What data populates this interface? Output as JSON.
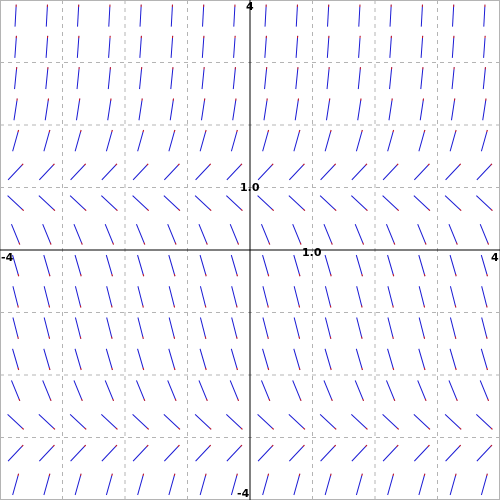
{
  "chart_data": {
    "type": "slope-field",
    "xlim": [
      -4,
      4
    ],
    "ylim": [
      -4,
      4
    ],
    "grid": true,
    "grid_spacing": 1,
    "tick_labels": {
      "x_min": "-4",
      "x_max": "4",
      "x_unit": "1.0",
      "y_min": "-4",
      "y_max": "4",
      "y_unit": "1.0"
    },
    "field_function": "dy/dx = (y - 1)(y + 3)",
    "samples_per_axis": 16,
    "colors": {
      "background": "#ffffff",
      "axis": "#000000",
      "grid": "#b4b4b4",
      "segment": "#1a1ad4",
      "segment_tip": "#d41a1a"
    }
  }
}
